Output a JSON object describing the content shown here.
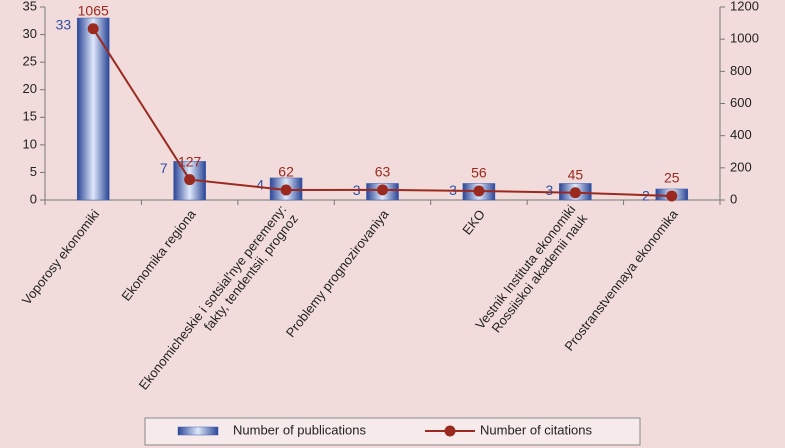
{
  "chart_data": {
    "type": "bar-line",
    "categories": [
      "Voporosy ekonomiki",
      "Ekonomika regiona",
      "Ekonomicheskie i sotsial'nye peremeny:\nfakty, tendentsii, prognoz",
      "Problemy prognozirovaniya",
      "EKO",
      "Vestnik Instituta ekonomiki\nRossiiskoi akademii nauk",
      "Prostranstvennaya ekonomika"
    ],
    "series": [
      {
        "name": "Number of publications",
        "color": "#3a5bb0",
        "type": "bar",
        "values": [
          33,
          7,
          4,
          3,
          3,
          3,
          2
        ]
      },
      {
        "name": "Number of citations",
        "color": "#9a2a1f",
        "type": "line",
        "axis": "y2",
        "values": [
          1065,
          127,
          62,
          63,
          56,
          45,
          25
        ]
      }
    ],
    "ylim": [
      0,
      35
    ],
    "yticks": [
      0,
      5,
      10,
      15,
      20,
      25,
      30,
      35
    ],
    "y2lim": [
      0,
      1200
    ],
    "y2ticks": [
      0,
      200,
      400,
      600,
      800,
      1000,
      1200
    ],
    "legend": "bottom"
  }
}
